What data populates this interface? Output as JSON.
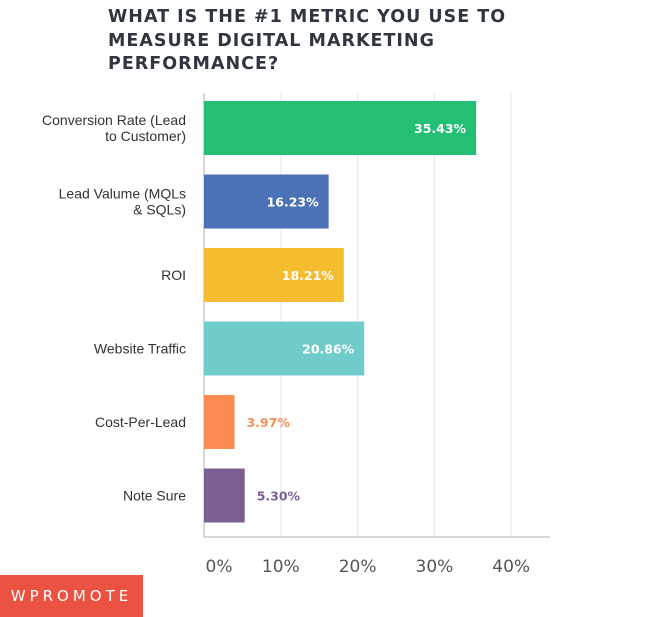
{
  "chart_data": {
    "type": "bar",
    "orientation": "horizontal",
    "title": "WHAT IS THE #1 METRIC YOU USE TO MEASURE DIGITAL MARKETING PERFORMANCE?",
    "categories": [
      [
        "Conversion Rate (Lead",
        "to Customer)"
      ],
      [
        "Lead Valume (MQLs",
        "& SQLs)"
      ],
      [
        "ROI"
      ],
      [
        "Website Traffic"
      ],
      [
        "Cost-Per-Lead"
      ],
      [
        "Note Sure"
      ]
    ],
    "values": [
      35.43,
      16.23,
      18.21,
      20.86,
      3.97,
      5.3
    ],
    "value_labels": [
      "35.43%",
      "16.23%",
      "18.21%",
      "20.86%",
      "3.97%",
      "5.30%"
    ],
    "colors": [
      "#22bf74",
      "#4b72b6",
      "#f6bc30",
      "#70cbcb",
      "#fc8b52",
      "#7b5f92"
    ],
    "xlim": [
      0,
      45
    ],
    "xticks": [
      0,
      10,
      20,
      30,
      40
    ],
    "xtick_labels": [
      "0%",
      "10%",
      "20%",
      "30%",
      "40%"
    ],
    "grid": true,
    "xlabel": "",
    "ylabel": ""
  },
  "branding": {
    "logo_text": "WPROMOTE",
    "logo_color": "#ec5242"
  }
}
